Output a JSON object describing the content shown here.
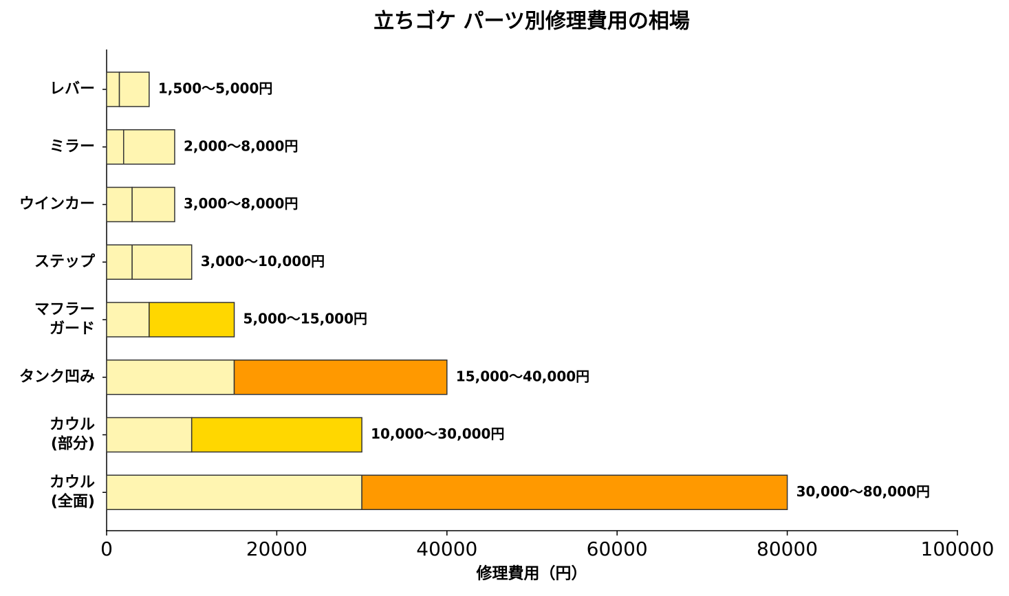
{
  "chart_data": {
    "type": "range-bar",
    "orientation": "horizontal",
    "title": "立ちゴケ パーツ別修理費用の相場",
    "xlabel": "修理費用（円）",
    "categories": [
      [
        "レバー"
      ],
      [
        "ミラー"
      ],
      [
        "ウインカー"
      ],
      [
        "ステップ"
      ],
      [
        "マフラー",
        "ガード"
      ],
      [
        "タンク凹み"
      ],
      [
        "カウル",
        "(部分)"
      ],
      [
        "カウル",
        "(全面)"
      ]
    ],
    "low": [
      1500,
      2000,
      3000,
      3000,
      5000,
      15000,
      10000,
      30000
    ],
    "high": [
      5000,
      8000,
      8000,
      10000,
      15000,
      40000,
      30000,
      80000
    ],
    "value_labels": [
      "1,500〜5,000円",
      "2,000〜8,000円",
      "3,000〜8,000円",
      "3,000〜10,000円",
      "5,000〜15,000円",
      "15,000〜40,000円",
      "10,000〜30,000円",
      "30,000〜80,000円"
    ],
    "base_color": "#fff5b1",
    "colors": [
      "#fff5b1",
      "#fff5b1",
      "#fff5b1",
      "#fff5b1",
      "#ffd700",
      "#ff9900",
      "#ffd700",
      "#ff9900"
    ],
    "xlim": [
      0,
      100000
    ],
    "xticks": [
      0,
      20000,
      40000,
      60000,
      80000,
      100000
    ],
    "grid": false
  }
}
